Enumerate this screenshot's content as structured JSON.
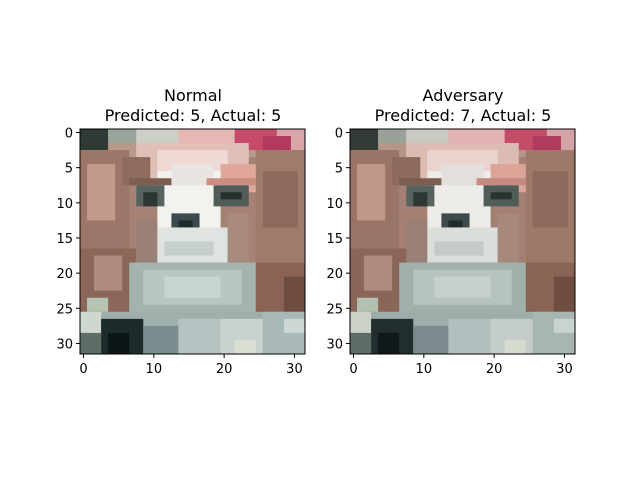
{
  "figure": {
    "background": "#ffffff"
  },
  "panels": [
    {
      "title_line1": "Normal",
      "title_line2": "Predicted: 5, Actual: 5",
      "image_semantic": "32x32 low-resolution photo of a brown and white puppy (dog face)"
    },
    {
      "title_line1": "Adversary",
      "title_line2": "Predicted: 7, Actual: 5",
      "image_semantic": "same 32x32 puppy photo with imperceptible adversarial perturbation"
    }
  ],
  "chart_data": [
    {
      "type": "heatmap",
      "title": "Normal\nPredicted: 5, Actual: 5",
      "image_size": [
        32,
        32
      ],
      "xlim": [
        -0.5,
        31.5
      ],
      "ylim": [
        31.5,
        -0.5
      ],
      "xticks": [
        0,
        10,
        20,
        30
      ],
      "yticks": [
        0,
        5,
        10,
        15,
        20,
        25,
        30
      ],
      "predicted": 5,
      "actual": 5
    },
    {
      "type": "heatmap",
      "title": "Adversary\nPredicted: 7, Actual: 5",
      "image_size": [
        32,
        32
      ],
      "xlim": [
        -0.5,
        31.5
      ],
      "ylim": [
        31.5,
        -0.5
      ],
      "xticks": [
        0,
        10,
        20,
        30
      ],
      "yticks": [
        0,
        5,
        10,
        15,
        20,
        25,
        30
      ],
      "predicted": 7,
      "actual": 5
    }
  ]
}
